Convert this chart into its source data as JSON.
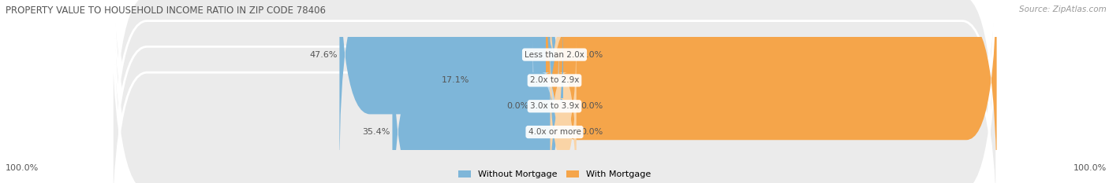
{
  "title": "PROPERTY VALUE TO HOUSEHOLD INCOME RATIO IN ZIP CODE 78406",
  "source": "Source: ZipAtlas.com",
  "categories": [
    "Less than 2.0x",
    "2.0x to 2.9x",
    "3.0x to 3.9x",
    "4.0x or more"
  ],
  "without_mortgage": [
    47.6,
    17.1,
    0.0,
    35.4
  ],
  "with_mortgage": [
    0.0,
    100.0,
    0.0,
    0.0
  ],
  "blue_color": "#7EB6D9",
  "blue_light_color": "#BDD9EC",
  "orange_color": "#F5A54A",
  "orange_light_color": "#FAD4A6",
  "bar_bg_color": "#EBEBEB",
  "title_color": "#555555",
  "source_color": "#999999",
  "label_color": "#555555",
  "category_color": "#555555",
  "legend_blue": "Without Mortgage",
  "legend_orange": "With Mortgage",
  "max_value": 100.0,
  "fig_bg": "#FFFFFF",
  "bottom_left_label": "100.0%",
  "bottom_right_label": "100.0%"
}
